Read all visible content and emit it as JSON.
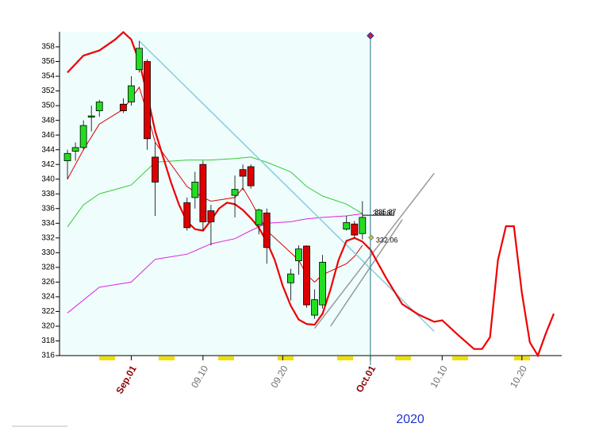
{
  "chart_data": {
    "type": "candlestick",
    "up_color": "#22dd22",
    "down_color": "#dd0000",
    "background_color": "#effdfd",
    "month_label_color": "#8b0000",
    "day_label_color": "#707070",
    "ylim": [
      316,
      358
    ],
    "yticks": [
      316,
      318,
      320,
      322,
      324,
      326,
      328,
      330,
      332,
      334,
      336,
      338,
      340,
      342,
      344,
      346,
      348,
      350,
      352,
      354,
      356,
      358
    ],
    "xlim": [
      "2020-08-23",
      "2020-10-25"
    ],
    "xticks": [
      {
        "value": "2020-09-01",
        "label": "Sep.01"
      },
      {
        "value": "2020-09-10",
        "label": "09.10"
      },
      {
        "value": "2020-09-20",
        "label": "09.20"
      },
      {
        "value": "2020-10-01",
        "label": "Oct.01"
      },
      {
        "value": "2020-10-10",
        "label": "10.10"
      },
      {
        "value": "2020-10-20",
        "label": "10.20"
      }
    ],
    "year_label": "2020",
    "cursor": "2020-10-01",
    "x": [
      "2020-08-24",
      "2020-08-25",
      "2020-08-26",
      "2020-08-27",
      "2020-08-28",
      "2020-08-31",
      "2020-09-01",
      "2020-09-02",
      "2020-09-03",
      "2020-09-04",
      "2020-09-08",
      "2020-09-09",
      "2020-09-10",
      "2020-09-11",
      "2020-09-14",
      "2020-09-15",
      "2020-09-16",
      "2020-09-17",
      "2020-09-18",
      "2020-09-21",
      "2020-09-22",
      "2020-09-23",
      "2020-09-24",
      "2020-09-25",
      "2020-09-28",
      "2020-09-29",
      "2020-09-30"
    ],
    "open": [
      342.5,
      343.8,
      344.3,
      348.5,
      349.3,
      350.2,
      350.5,
      354.9,
      356.0,
      343.0,
      336.8,
      337.5,
      342.0,
      335.7,
      337.8,
      341.3,
      341.7,
      333.8,
      335.4,
      325.9,
      328.9,
      330.9,
      321.5,
      322.9,
      333.2,
      333.9,
      332.6
    ],
    "high": [
      344.0,
      345.0,
      348.0,
      350.0,
      350.8,
      351.0,
      354.0,
      358.8,
      356.3,
      345.0,
      337.5,
      341.0,
      342.5,
      336.5,
      340.5,
      342.0,
      342.0,
      336.0,
      336.0,
      327.8,
      331.0,
      331.0,
      325.0,
      329.7,
      335.0,
      334.3,
      337.0
    ],
    "low": [
      340.0,
      342.5,
      344.0,
      346.5,
      348.5,
      349.0,
      350.0,
      354.5,
      344.0,
      335.0,
      333.0,
      336.0,
      333.0,
      331.0,
      334.8,
      338.5,
      338.7,
      332.5,
      328.5,
      323.5,
      327.0,
      322.5,
      321.0,
      322.4,
      333.0,
      332.0,
      331.8
    ],
    "close": [
      343.5,
      344.3,
      347.3,
      348.6,
      350.5,
      349.3,
      352.7,
      357.8,
      345.5,
      339.6,
      333.4,
      339.6,
      334.2,
      334.2,
      338.6,
      340.4,
      339.1,
      335.8,
      330.7,
      327.1,
      330.5,
      322.9,
      323.6,
      328.7,
      334.1,
      332.4,
      334.8
    ],
    "lines": [
      {
        "color": "#33cc33",
        "width": 1,
        "x": [
          "2020-08-24",
          "2020-08-26",
          "2020-08-28",
          "2020-09-01",
          "2020-09-04",
          "2020-09-08",
          "2020-09-11",
          "2020-09-14",
          "2020-09-16",
          "2020-09-18",
          "2020-09-21",
          "2020-09-23",
          "2020-09-25",
          "2020-09-28",
          "2020-09-30"
        ],
        "values": [
          333.5,
          336.5,
          338.0,
          339.2,
          342.3,
          342.6,
          342.6,
          342.8,
          343.0,
          342.3,
          341.0,
          339.0,
          337.7,
          336.6,
          335.3
        ]
      },
      {
        "color": "#dd22dd",
        "width": 1,
        "x": [
          "2020-08-24",
          "2020-08-28",
          "2020-09-01",
          "2020-09-04",
          "2020-09-08",
          "2020-09-11",
          "2020-09-14",
          "2020-09-16",
          "2020-09-18",
          "2020-09-21",
          "2020-09-23",
          "2020-09-25",
          "2020-09-28",
          "2020-09-30"
        ],
        "values": [
          321.8,
          325.3,
          326.0,
          329.1,
          329.8,
          331.2,
          331.9,
          333.0,
          334.0,
          334.2,
          334.6,
          334.8,
          335.0,
          335.3
        ]
      },
      {
        "color": "#dd0000",
        "width": 1,
        "x": [
          "2020-08-24",
          "2020-08-26",
          "2020-08-28",
          "2020-08-31",
          "2020-09-01",
          "2020-09-02",
          "2020-09-03",
          "2020-09-04",
          "2020-09-08",
          "2020-09-10",
          "2020-09-11",
          "2020-09-14",
          "2020-09-15",
          "2020-09-16",
          "2020-09-17",
          "2020-09-18",
          "2020-09-21",
          "2020-09-22",
          "2020-09-23",
          "2020-09-24",
          "2020-09-25",
          "2020-09-28",
          "2020-09-29",
          "2020-09-30"
        ],
        "values": [
          340.0,
          344.0,
          347.5,
          349.5,
          351.0,
          352.5,
          349.0,
          345.0,
          339.0,
          337.5,
          337.0,
          337.5,
          338.8,
          337.0,
          335.0,
          333.0,
          330.0,
          329.0,
          327.0,
          326.0,
          327.0,
          328.5,
          329.5,
          331.0
        ]
      },
      {
        "color": "#88ccdd",
        "width": 1.5,
        "x": [
          "2020-09-02",
          "2020-10-09"
        ],
        "values": [
          358.8,
          319.3
        ]
      },
      {
        "color": "#999999",
        "width": 1.5,
        "x": [
          "2020-09-24",
          "2020-10-09"
        ],
        "values": [
          319.7,
          340.8
        ]
      },
      {
        "color": "#999999",
        "width": 1.5,
        "x": [
          "2020-09-26",
          "2020-10-05"
        ],
        "values": [
          320.0,
          334.5
        ]
      },
      {
        "color": "#000000",
        "width": 1,
        "x": [
          "2020-09-30",
          "2020-10-04"
        ],
        "values": [
          335.1,
          335.1
        ]
      },
      {
        "color": "#ee0000",
        "width": 2.2,
        "x": [
          "2020-08-24",
          "2020-08-26",
          "2020-08-28",
          "2020-08-30",
          "2020-08-31",
          "2020-09-01",
          "2020-09-02",
          "2020-09-03",
          "2020-09-04",
          "2020-09-05",
          "2020-09-06",
          "2020-09-07",
          "2020-09-08",
          "2020-09-09",
          "2020-09-10",
          "2020-09-11",
          "2020-09-12",
          "2020-09-13",
          "2020-09-14",
          "2020-09-15",
          "2020-09-16",
          "2020-09-17",
          "2020-09-18",
          "2020-09-19",
          "2020-09-20",
          "2020-09-21",
          "2020-09-22",
          "2020-09-23",
          "2020-09-24",
          "2020-09-25",
          "2020-09-26",
          "2020-09-27",
          "2020-09-28",
          "2020-09-29",
          "2020-09-30",
          "2020-10-01",
          "2020-10-03",
          "2020-10-05",
          "2020-10-07",
          "2020-10-09",
          "2020-10-10",
          "2020-10-12",
          "2020-10-14",
          "2020-10-15",
          "2020-10-16",
          "2020-10-17",
          "2020-10-18",
          "2020-10-19",
          "2020-10-20",
          "2020-10-21",
          "2020-10-22",
          "2020-10-23",
          "2020-10-24"
        ],
        "values": [
          354.5,
          356.8,
          357.5,
          359.0,
          360.0,
          359.0,
          356.0,
          351.5,
          346.5,
          343.0,
          339.5,
          336.5,
          334.2,
          333.2,
          333.0,
          334.4,
          336.0,
          336.8,
          336.6,
          335.8,
          334.7,
          333.4,
          331.5,
          329.0,
          325.5,
          322.8,
          320.9,
          320.3,
          320.2,
          321.7,
          325.0,
          329.0,
          331.6,
          332.0,
          331.5,
          330.4,
          326.5,
          323.0,
          321.6,
          320.6,
          320.8,
          318.8,
          316.9,
          316.9,
          318.5,
          329.0,
          333.6,
          333.6,
          324.5,
          317.8,
          316.0,
          319.0,
          321.7
        ]
      }
    ],
    "price_labels": [
      334.89,
      335.27,
      332.06
    ]
  }
}
